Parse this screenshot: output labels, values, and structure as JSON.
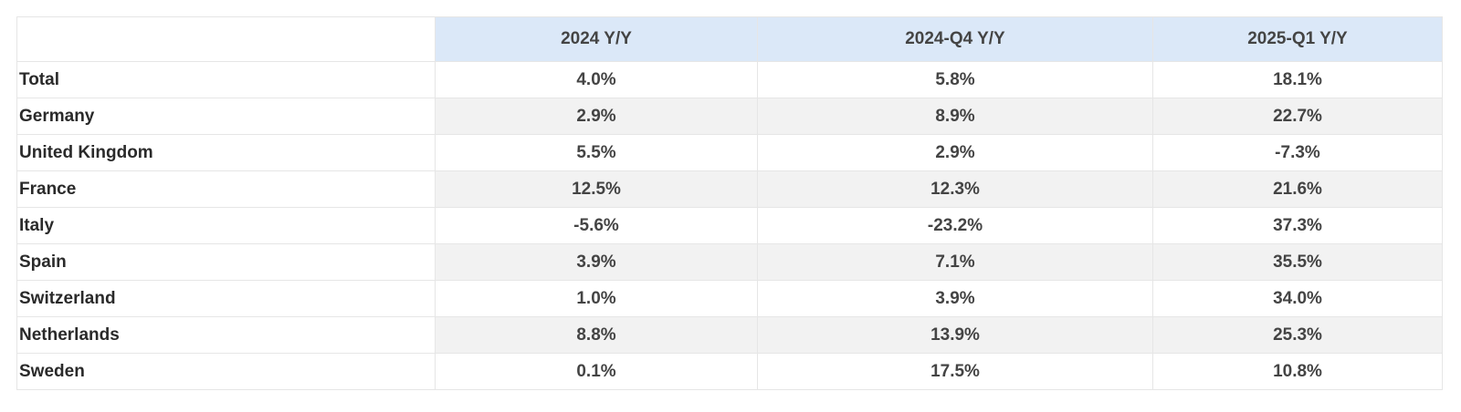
{
  "table": {
    "columns": [
      "",
      "2024 Y/Y",
      "2024-Q4 Y/Y",
      "2025-Q1 Y/Y"
    ],
    "rows": [
      {
        "label": "Total",
        "values": [
          "4.0%",
          "5.8%",
          "18.1%"
        ]
      },
      {
        "label": "Germany",
        "values": [
          "2.9%",
          "8.9%",
          "22.7%"
        ]
      },
      {
        "label": "United Kingdom",
        "values": [
          "5.5%",
          "2.9%",
          "-7.3%"
        ]
      },
      {
        "label": "France",
        "values": [
          "12.5%",
          "12.3%",
          "21.6%"
        ]
      },
      {
        "label": "Italy",
        "values": [
          "-5.6%",
          "-23.2%",
          "37.3%"
        ]
      },
      {
        "label": "Spain",
        "values": [
          "3.9%",
          "7.1%",
          "35.5%"
        ]
      },
      {
        "label": "Switzerland",
        "values": [
          "1.0%",
          "3.9%",
          "34.0%"
        ]
      },
      {
        "label": "Netherlands",
        "values": [
          "8.8%",
          "13.9%",
          "25.3%"
        ]
      },
      {
        "label": "Sweden",
        "values": [
          "0.1%",
          "17.5%",
          "10.8%"
        ]
      }
    ]
  },
  "colors": {
    "header_bg": "#dbe8f8",
    "stripe_bg": "#f2f2f2",
    "border": "#e6e6e6"
  }
}
